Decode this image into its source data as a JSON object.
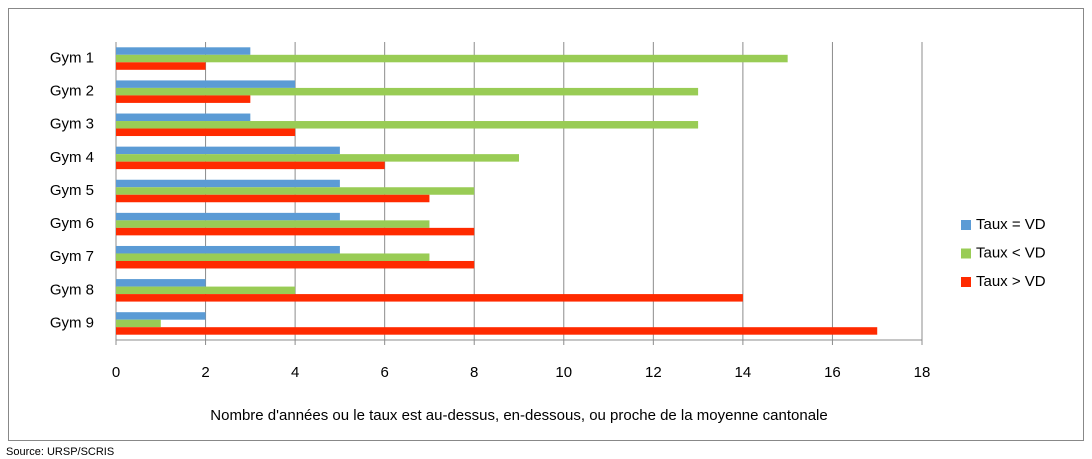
{
  "chart_data": {
    "type": "hbar",
    "categories": [
      "Gym 1",
      "Gym 2",
      "Gym 3",
      "Gym 4",
      "Gym 5",
      "Gym 6",
      "Gym 7",
      "Gym 8",
      "Gym 9"
    ],
    "series": [
      {
        "name": "Taux = VD",
        "color": "#5b9bd5",
        "values": [
          3,
          4,
          3,
          5,
          5,
          5,
          5,
          2,
          2
        ]
      },
      {
        "name": "Taux < VD",
        "color": "#99cc55",
        "values": [
          15,
          13,
          13,
          9,
          8,
          7,
          7,
          4,
          1
        ]
      },
      {
        "name": "Taux > VD",
        "color": "#ff2a00",
        "values": [
          2,
          3,
          4,
          6,
          7,
          8,
          8,
          14,
          17
        ]
      }
    ],
    "xlim": [
      0,
      18
    ],
    "xticks": [
      0,
      2,
      4,
      6,
      8,
      10,
      12,
      14,
      16,
      18
    ],
    "x_label": "Nombre d'années ou le taux est au-dessus, en-dessous, ou proche de la moyenne cantonale",
    "source": "Source: URSP/SCRIS",
    "grid": true,
    "legend": "right"
  }
}
